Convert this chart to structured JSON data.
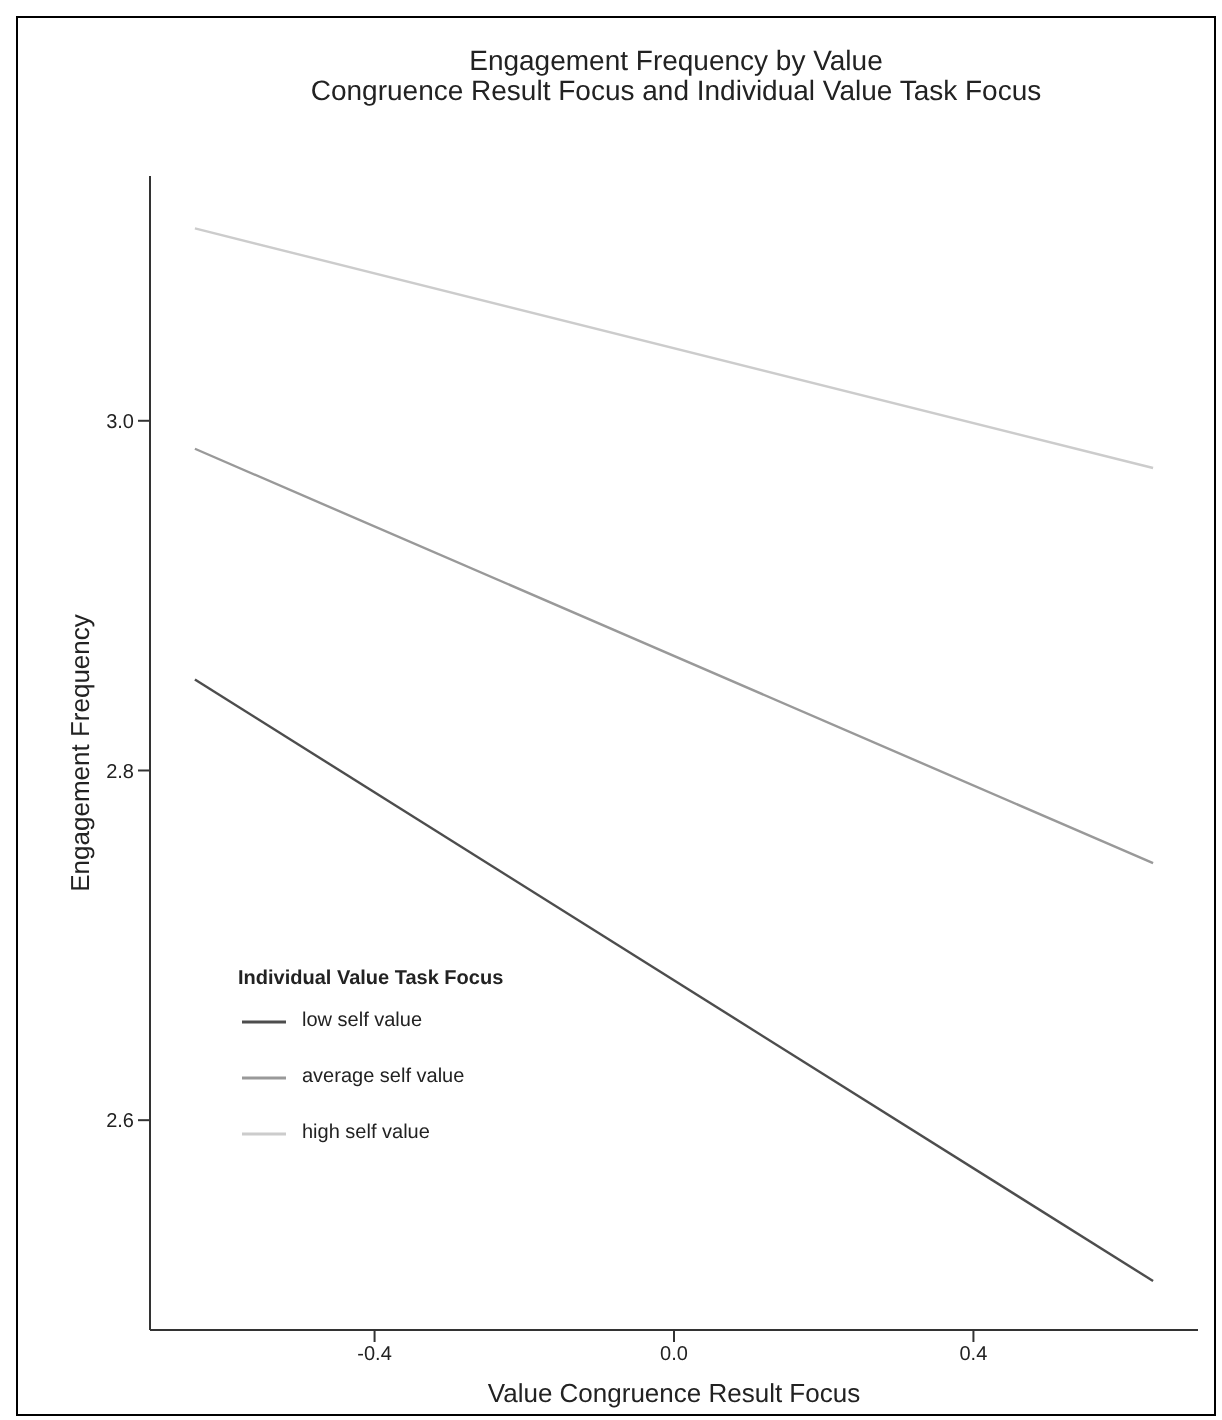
{
  "chart_data": {
    "type": "line",
    "title": "Engagement Frequency by Value\nCongruence Result Focus and Individual Value Task Focus",
    "xlabel": "Value Congruence Result Focus",
    "ylabel": "Engagement Frequency",
    "legend_title": "Individual Value Task Focus",
    "x": [
      -0.64,
      0.64
    ],
    "series": [
      {
        "name": "low self value",
        "color": "#4d4d4d",
        "values": [
          2.852,
          2.508
        ]
      },
      {
        "name": "average self value",
        "color": "#999999",
        "values": [
          2.984,
          2.747
        ]
      },
      {
        "name": "high self value",
        "color": "#cccccc",
        "values": [
          3.11,
          2.973
        ]
      }
    ],
    "xlim": [
      -0.7,
      0.7
    ],
    "xticks": [
      -0.4,
      {
        "value": 0,
        "label": "0.0"
      },
      0.4
    ],
    "ylim": [
      2.48,
      3.14
    ],
    "yticks": [
      2.6,
      2.8,
      {
        "value": 3,
        "label": "3.0"
      }
    ],
    "grid": false,
    "legend": "bottom left",
    "marker": "none",
    "line_style": "solid"
  }
}
